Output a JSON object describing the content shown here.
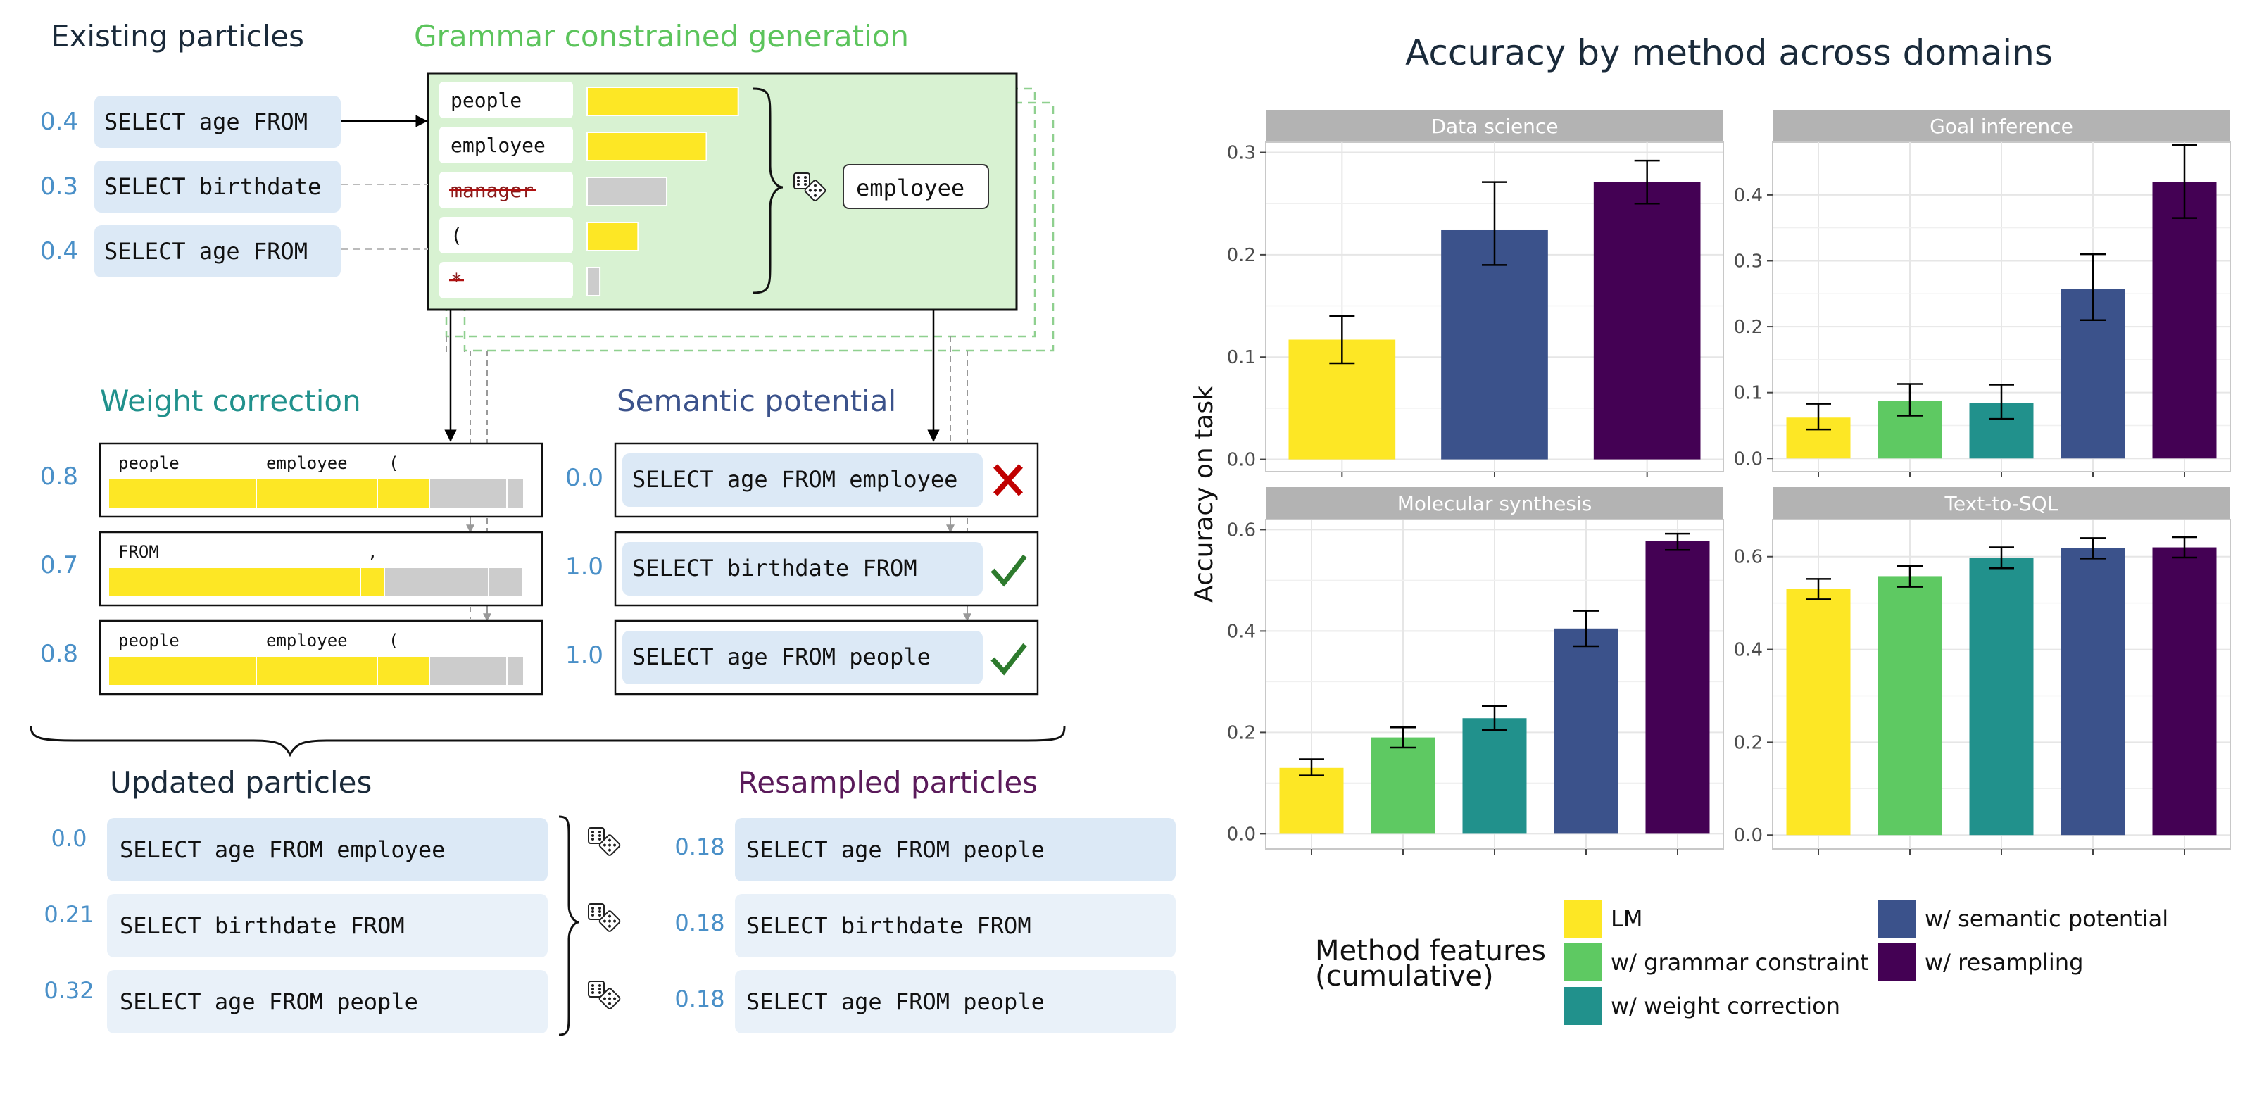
{
  "colors": {
    "lm": "#fde725",
    "grammar": "#5ec962",
    "weight": "#21918c",
    "semantic": "#3b528b",
    "resampling": "#440154",
    "particle_bg": "#dce9f6",
    "particle_bg_light": "#e9f1f9",
    "weight_text": "#4a90c8",
    "title_dark": "#1a2a3a",
    "grammar_title": "#5cc45c",
    "weight_title": "#21918c",
    "semantic_title": "#3b528b",
    "resampled_title": "#5a1a5a",
    "facet_header": "#b3b3b3",
    "grid": "#e6e6e6",
    "cross": "#c00000",
    "check": "#2d7a2d"
  },
  "left": {
    "existing": {
      "title": "Existing particles",
      "particles": [
        {
          "weight": "0.4",
          "text": "SELECT age FROM"
        },
        {
          "weight": "0.3",
          "text": "SELECT birthdate"
        },
        {
          "weight": "0.4",
          "text": "SELECT age FROM"
        }
      ]
    },
    "grammar": {
      "title": "Grammar constrained generation",
      "tokens": [
        {
          "text": "people",
          "prob": 0.95,
          "allowed": true
        },
        {
          "text": "employee",
          "prob": 0.75,
          "allowed": true
        },
        {
          "text": "manager",
          "prob": 0.5,
          "allowed": false
        },
        {
          "text": "(",
          "prob": 0.32,
          "allowed": true
        },
        {
          "text": "*",
          "prob": 0.08,
          "allowed": false
        }
      ],
      "sample_icon": "dice-icon",
      "sampled": "employee"
    },
    "weight_correction": {
      "title": "Weight correction",
      "rows": [
        {
          "weight": "0.8",
          "labels": [
            "people",
            "employee",
            "("
          ]
        },
        {
          "weight": "0.7",
          "labels": [
            "FROM",
            ","
          ]
        },
        {
          "weight": "0.8",
          "labels": [
            "people",
            "employee",
            "("
          ]
        }
      ]
    },
    "semantic": {
      "title": "Semantic potential",
      "rows": [
        {
          "weight": "0.0",
          "text": "SELECT age FROM employee",
          "status": "cross-icon"
        },
        {
          "weight": "1.0",
          "text": "SELECT birthdate FROM",
          "status": "check-icon"
        },
        {
          "weight": "1.0",
          "text": "SELECT age FROM people",
          "status": "check-icon"
        }
      ]
    },
    "updated": {
      "title": "Updated particles",
      "particles": [
        {
          "weight": "0.0",
          "text": "SELECT age FROM employee"
        },
        {
          "weight": "0.21",
          "text": "SELECT birthdate FROM"
        },
        {
          "weight": "0.32",
          "text": "SELECT age FROM people"
        }
      ]
    },
    "resampled": {
      "title": "Resampled particles",
      "particles": [
        {
          "weight": "0.18",
          "text": "SELECT age FROM people"
        },
        {
          "weight": "0.18",
          "text": "SELECT birthdate FROM"
        },
        {
          "weight": "0.18",
          "text": "SELECT age FROM people"
        }
      ]
    }
  },
  "chart_data": {
    "type": "bar",
    "title": "Accuracy by method across domains",
    "ylabel": "Accuracy on task",
    "legend_title": "Method features\n(cumulative)",
    "legend_placement": "bottom",
    "grid": true,
    "methods": [
      "LM",
      "w/ grammar constraint",
      "w/ weight correction",
      "w/ semantic potential",
      "w/ resampling"
    ],
    "legend_order": [
      0,
      3,
      1,
      4,
      2
    ],
    "facets": [
      {
        "name": "Data science",
        "ylim": [
          -0.012,
          0.31
        ],
        "yticks": [
          0.0,
          0.1,
          0.2,
          0.3
        ],
        "methods": [
          0,
          3,
          4
        ],
        "values": [
          0.117,
          0.224,
          0.271
        ],
        "errors": [
          [
            0.094,
            0.14
          ],
          [
            0.19,
            0.271
          ],
          [
            0.25,
            0.292
          ]
        ]
      },
      {
        "name": "Goal inference",
        "ylim": [
          -0.02,
          0.48
        ],
        "yticks": [
          0.0,
          0.1,
          0.2,
          0.3,
          0.4
        ],
        "methods": [
          0,
          1,
          2,
          3,
          4
        ],
        "values": [
          0.062,
          0.087,
          0.084,
          0.257,
          0.42
        ],
        "errors": [
          [
            0.044,
            0.083
          ],
          [
            0.065,
            0.113
          ],
          [
            0.06,
            0.112
          ],
          [
            0.21,
            0.31
          ],
          [
            0.365,
            0.476
          ]
        ]
      },
      {
        "name": "Molecular synthesis",
        "ylim": [
          -0.03,
          0.62
        ],
        "yticks": [
          0.0,
          0.2,
          0.4,
          0.6
        ],
        "methods": [
          0,
          1,
          2,
          3,
          4
        ],
        "values": [
          0.13,
          0.19,
          0.228,
          0.405,
          0.578
        ],
        "errors": [
          [
            0.115,
            0.147
          ],
          [
            0.17,
            0.21
          ],
          [
            0.205,
            0.252
          ],
          [
            0.37,
            0.44
          ],
          [
            0.56,
            0.592
          ]
        ]
      },
      {
        "name": "Text-to-SQL",
        "ylim": [
          -0.03,
          0.68
        ],
        "yticks": [
          0.0,
          0.2,
          0.4,
          0.6
        ],
        "methods": [
          0,
          1,
          2,
          3,
          4
        ],
        "values": [
          0.53,
          0.558,
          0.597,
          0.618,
          0.62
        ],
        "errors": [
          [
            0.508,
            0.552
          ],
          [
            0.535,
            0.58
          ],
          [
            0.575,
            0.62
          ],
          [
            0.596,
            0.64
          ],
          [
            0.598,
            0.642
          ]
        ]
      }
    ]
  }
}
